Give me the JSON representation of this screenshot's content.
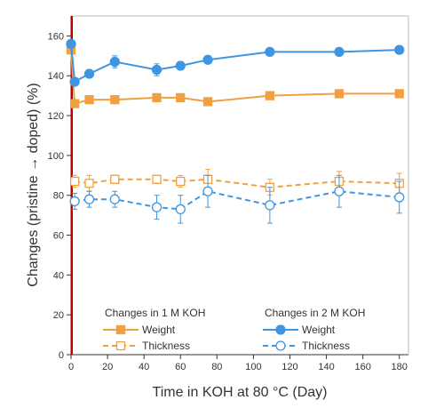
{
  "chart_data": {
    "type": "line",
    "xlabel": "Time in KOH at 80 °C (Day)",
    "ylabel": "Changes (pristine → doped) (%)",
    "xlim": [
      0,
      185
    ],
    "ylim": [
      0,
      170
    ],
    "x_ticks": [
      0,
      20,
      40,
      60,
      80,
      100,
      120,
      140,
      160,
      180
    ],
    "y_ticks": [
      0,
      20,
      40,
      60,
      80,
      100,
      120,
      140,
      160
    ],
    "grid": false,
    "legend_position": "bottom",
    "legend_groups": [
      {
        "title": "Changes in 1 M KOH",
        "entries": [
          "Weight",
          "Thickness"
        ]
      },
      {
        "title": "Changes in 2 M KOH",
        "entries": [
          "Weight",
          "Thickness"
        ]
      }
    ],
    "series": [
      {
        "name": "Weight",
        "group": "1 M KOH",
        "color": "#F0A040",
        "marker": "square-filled",
        "line": "solid",
        "x": [
          0,
          2,
          10,
          24,
          47,
          60,
          75,
          109,
          147,
          180
        ],
        "y": [
          153,
          126,
          128,
          128,
          129,
          129,
          127,
          130,
          131,
          131
        ],
        "err": [
          0,
          0,
          0,
          0,
          0,
          0,
          0,
          0,
          0,
          0
        ]
      },
      {
        "name": "Thickness",
        "group": "1 M KOH",
        "color": "#F0A040",
        "marker": "square-open",
        "line": "dashed",
        "x": [
          2,
          10,
          24,
          47,
          60,
          75,
          109,
          147,
          180
        ],
        "y": [
          87,
          86,
          88,
          88,
          87,
          88,
          84,
          87,
          86
        ],
        "err": [
          3,
          4,
          2,
          2,
          3,
          5,
          4,
          5,
          5
        ]
      },
      {
        "name": "Weight",
        "group": "2 M KOH",
        "color": "#3F95E0",
        "marker": "circle-filled",
        "line": "solid",
        "x": [
          0,
          2,
          10,
          24,
          47,
          60,
          75,
          109,
          147,
          180
        ],
        "y": [
          156,
          137,
          141,
          147,
          143,
          145,
          148,
          152,
          152,
          153
        ],
        "err": [
          2,
          2,
          2,
          3,
          3,
          2,
          1,
          1,
          1,
          1
        ]
      },
      {
        "name": "Thickness",
        "group": "2 M KOH",
        "color": "#3F95E0",
        "marker": "circle-open",
        "line": "dashed",
        "x": [
          2,
          10,
          24,
          47,
          60,
          75,
          109,
          147,
          180
        ],
        "y": [
          77,
          78,
          78,
          74,
          73,
          82,
          75,
          82,
          79
        ],
        "err": [
          4,
          4,
          4,
          6,
          7,
          8,
          9,
          8,
          8
        ]
      }
    ]
  },
  "colors": {
    "orange": "#F0A040",
    "blue": "#3F95E0",
    "marker_line": "#C00000",
    "axis": "#333333"
  }
}
